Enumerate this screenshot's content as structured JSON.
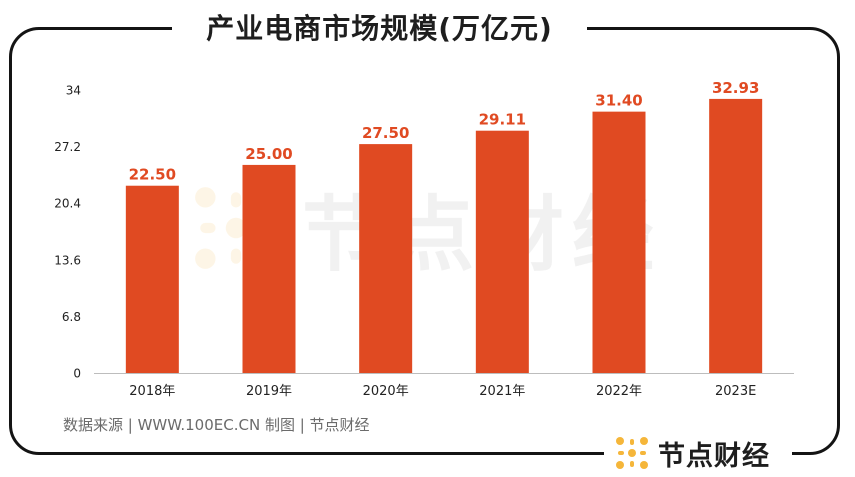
{
  "title": "产业电商市场规模(万亿元)",
  "source": "数据来源 | WWW.100EC.CN  制图 | 节点财经",
  "brand": {
    "name": "节点财经",
    "logo_icon": "dot-grid-logo-icon",
    "logo_color": "#f5b63a"
  },
  "watermark": {
    "name": "节点财经",
    "logo_icon": "dot-grid-watermark-icon"
  },
  "colors": {
    "bar": "#e04a22",
    "value_label": "#e04a22",
    "axis_text": "#222222"
  },
  "chart_data": {
    "type": "bar",
    "title": "产业电商市场规模(万亿元)",
    "xlabel": "",
    "ylabel": "",
    "categories": [
      "2018年",
      "2019年",
      "2020年",
      "2021年",
      "2022年",
      "2023E"
    ],
    "values": [
      22.5,
      25.0,
      27.5,
      29.11,
      31.4,
      32.93
    ],
    "value_labels": [
      "22.50",
      "25.00",
      "27.50",
      "29.11",
      "31.40",
      "32.93"
    ],
    "ylim": [
      0,
      34
    ],
    "yticks": [
      0,
      6.8,
      13.6,
      20.4,
      27.2,
      34
    ],
    "ytick_labels": [
      "0",
      "6.8",
      "13.6",
      "20.4",
      "27.2",
      "34"
    ],
    "grid": false,
    "legend": "none"
  }
}
